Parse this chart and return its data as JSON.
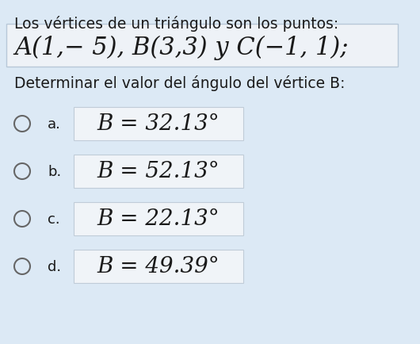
{
  "bg_color": "#dce9f5",
  "title_line1": "Los vértices de un triángulo son los puntos:",
  "title_line2": "A(1,− 5), B(3,3) y C(−1, 1);",
  "question": "Determinar el valor del ángulo del vértice B:",
  "options": [
    {
      "label": "a.",
      "text": "B = 32.13°"
    },
    {
      "label": "b.",
      "text": "B = 52.13°"
    },
    {
      "label": "c.",
      "text": "B = 22.13°"
    },
    {
      "label": "d.",
      "text": "B = 49.39°"
    }
  ],
  "title1_fontsize": 13.5,
  "title2_fontsize": 22,
  "question_fontsize": 13.5,
  "option_label_fontsize": 13,
  "option_text_fontsize": 20,
  "option_box_facecolor": "#f0f4f8",
  "option_box_edgecolor": "#c0ccd8",
  "text_color": "#1a1a1a",
  "circle_color": "#666666",
  "title2_box_facecolor": "#eef2f7",
  "title2_box_edgecolor": "#b8c8d8"
}
